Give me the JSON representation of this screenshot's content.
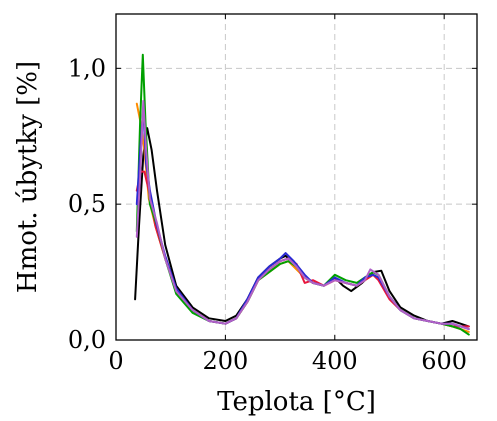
{
  "chart_data": {
    "type": "line",
    "xlabel": "Teplota [°C]",
    "ylabel": "Hmot. úbytky [%]",
    "xlim": [
      0,
      660
    ],
    "ylim": [
      0,
      1.2
    ],
    "x_ticks": [
      {
        "value": 0,
        "label": "0"
      },
      {
        "value": 200,
        "label": "200"
      },
      {
        "value": 400,
        "label": "400"
      },
      {
        "value": 600,
        "label": "600"
      }
    ],
    "y_ticks": [
      {
        "value": 0,
        "label": "0,0"
      },
      {
        "value": 0.5,
        "label": "0,5"
      },
      {
        "value": 1.0,
        "label": "1,0"
      }
    ],
    "grid": true,
    "series": [
      {
        "color": "#000000",
        "points": [
          [
            35,
            0.15
          ],
          [
            42,
            0.42
          ],
          [
            50,
            0.68
          ],
          [
            57,
            0.78
          ],
          [
            65,
            0.7
          ],
          [
            75,
            0.55
          ],
          [
            90,
            0.35
          ],
          [
            110,
            0.2
          ],
          [
            140,
            0.12
          ],
          [
            170,
            0.08
          ],
          [
            200,
            0.07
          ],
          [
            220,
            0.09
          ],
          [
            240,
            0.15
          ],
          [
            260,
            0.23
          ],
          [
            280,
            0.27
          ],
          [
            300,
            0.3
          ],
          [
            310,
            0.31
          ],
          [
            325,
            0.28
          ],
          [
            345,
            0.23
          ],
          [
            360,
            0.21
          ],
          [
            380,
            0.2
          ],
          [
            400,
            0.23
          ],
          [
            415,
            0.2
          ],
          [
            430,
            0.18
          ],
          [
            450,
            0.21
          ],
          [
            470,
            0.25
          ],
          [
            485,
            0.255
          ],
          [
            500,
            0.18
          ],
          [
            520,
            0.12
          ],
          [
            545,
            0.09
          ],
          [
            570,
            0.07
          ],
          [
            595,
            0.06
          ],
          [
            615,
            0.07
          ],
          [
            630,
            0.06
          ],
          [
            645,
            0.05
          ]
        ]
      },
      {
        "color": "#ff8c00",
        "points": [
          [
            38,
            0.87
          ],
          [
            45,
            0.8
          ],
          [
            52,
            0.7
          ],
          [
            60,
            0.52
          ],
          [
            72,
            0.42
          ],
          [
            90,
            0.3
          ],
          [
            110,
            0.18
          ],
          [
            140,
            0.11
          ],
          [
            170,
            0.07
          ],
          [
            200,
            0.06
          ],
          [
            220,
            0.08
          ],
          [
            240,
            0.14
          ],
          [
            260,
            0.22
          ],
          [
            280,
            0.25
          ],
          [
            300,
            0.28
          ],
          [
            315,
            0.29
          ],
          [
            330,
            0.26
          ],
          [
            345,
            0.23
          ],
          [
            360,
            0.21
          ],
          [
            380,
            0.2
          ],
          [
            400,
            0.22
          ],
          [
            420,
            0.21
          ],
          [
            440,
            0.2
          ],
          [
            455,
            0.22
          ],
          [
            470,
            0.24
          ],
          [
            480,
            0.23
          ],
          [
            500,
            0.16
          ],
          [
            520,
            0.11
          ],
          [
            545,
            0.08
          ],
          [
            570,
            0.07
          ],
          [
            595,
            0.06
          ],
          [
            615,
            0.05
          ],
          [
            630,
            0.04
          ],
          [
            645,
            0.03
          ]
        ]
      },
      {
        "color": "#e8163c",
        "points": [
          [
            38,
            0.55
          ],
          [
            45,
            0.62
          ],
          [
            52,
            0.62
          ],
          [
            60,
            0.55
          ],
          [
            72,
            0.42
          ],
          [
            90,
            0.3
          ],
          [
            110,
            0.18
          ],
          [
            140,
            0.11
          ],
          [
            170,
            0.07
          ],
          [
            200,
            0.06
          ],
          [
            220,
            0.08
          ],
          [
            240,
            0.14
          ],
          [
            260,
            0.22
          ],
          [
            280,
            0.26
          ],
          [
            300,
            0.29
          ],
          [
            315,
            0.3
          ],
          [
            330,
            0.28
          ],
          [
            345,
            0.21
          ],
          [
            360,
            0.22
          ],
          [
            380,
            0.2
          ],
          [
            400,
            0.22
          ],
          [
            420,
            0.21
          ],
          [
            440,
            0.2
          ],
          [
            455,
            0.22
          ],
          [
            470,
            0.24
          ],
          [
            480,
            0.22
          ],
          [
            500,
            0.15
          ],
          [
            520,
            0.11
          ],
          [
            545,
            0.08
          ],
          [
            570,
            0.07
          ],
          [
            595,
            0.06
          ],
          [
            615,
            0.05
          ],
          [
            630,
            0.05
          ],
          [
            645,
            0.05
          ]
        ]
      },
      {
        "color": "#00a000",
        "points": [
          [
            38,
            0.4
          ],
          [
            44,
            0.8
          ],
          [
            49,
            1.05
          ],
          [
            54,
            0.8
          ],
          [
            62,
            0.5
          ],
          [
            75,
            0.42
          ],
          [
            90,
            0.3
          ],
          [
            110,
            0.17
          ],
          [
            140,
            0.1
          ],
          [
            170,
            0.07
          ],
          [
            200,
            0.06
          ],
          [
            220,
            0.08
          ],
          [
            240,
            0.14
          ],
          [
            260,
            0.22
          ],
          [
            280,
            0.25
          ],
          [
            300,
            0.28
          ],
          [
            315,
            0.29
          ],
          [
            330,
            0.27
          ],
          [
            345,
            0.23
          ],
          [
            360,
            0.21
          ],
          [
            380,
            0.2
          ],
          [
            400,
            0.24
          ],
          [
            420,
            0.22
          ],
          [
            440,
            0.21
          ],
          [
            455,
            0.23
          ],
          [
            470,
            0.25
          ],
          [
            480,
            0.24
          ],
          [
            500,
            0.16
          ],
          [
            520,
            0.11
          ],
          [
            545,
            0.08
          ],
          [
            570,
            0.07
          ],
          [
            595,
            0.06
          ],
          [
            615,
            0.05
          ],
          [
            630,
            0.04
          ],
          [
            645,
            0.02
          ]
        ]
      },
      {
        "color": "#2a2ad4",
        "points": [
          [
            38,
            0.5
          ],
          [
            45,
            0.72
          ],
          [
            50,
            0.85
          ],
          [
            55,
            0.65
          ],
          [
            62,
            0.55
          ],
          [
            75,
            0.42
          ],
          [
            90,
            0.31
          ],
          [
            110,
            0.19
          ],
          [
            140,
            0.11
          ],
          [
            170,
            0.07
          ],
          [
            200,
            0.06
          ],
          [
            220,
            0.08
          ],
          [
            240,
            0.15
          ],
          [
            260,
            0.23
          ],
          [
            280,
            0.27
          ],
          [
            300,
            0.3
          ],
          [
            310,
            0.32
          ],
          [
            325,
            0.29
          ],
          [
            345,
            0.24
          ],
          [
            360,
            0.21
          ],
          [
            380,
            0.2
          ],
          [
            400,
            0.23
          ],
          [
            420,
            0.21
          ],
          [
            440,
            0.2
          ],
          [
            455,
            0.23
          ],
          [
            470,
            0.24
          ],
          [
            480,
            0.23
          ],
          [
            500,
            0.16
          ],
          [
            520,
            0.11
          ],
          [
            545,
            0.08
          ],
          [
            570,
            0.07
          ],
          [
            595,
            0.06
          ],
          [
            615,
            0.06
          ],
          [
            630,
            0.05
          ],
          [
            645,
            0.04
          ]
        ]
      },
      {
        "color": "#b060c8",
        "points": [
          [
            38,
            0.38
          ],
          [
            44,
            0.6
          ],
          [
            50,
            0.88
          ],
          [
            55,
            0.7
          ],
          [
            62,
            0.52
          ],
          [
            75,
            0.43
          ],
          [
            90,
            0.3
          ],
          [
            110,
            0.18
          ],
          [
            140,
            0.11
          ],
          [
            170,
            0.07
          ],
          [
            200,
            0.06
          ],
          [
            220,
            0.08
          ],
          [
            240,
            0.14
          ],
          [
            260,
            0.22
          ],
          [
            280,
            0.26
          ],
          [
            300,
            0.29
          ],
          [
            315,
            0.3
          ],
          [
            330,
            0.27
          ],
          [
            345,
            0.23
          ],
          [
            360,
            0.21
          ],
          [
            380,
            0.2
          ],
          [
            400,
            0.22
          ],
          [
            420,
            0.21
          ],
          [
            440,
            0.2
          ],
          [
            455,
            0.22
          ],
          [
            465,
            0.26
          ],
          [
            480,
            0.24
          ],
          [
            500,
            0.16
          ],
          [
            520,
            0.11
          ],
          [
            545,
            0.08
          ],
          [
            570,
            0.07
          ],
          [
            595,
            0.06
          ],
          [
            615,
            0.06
          ],
          [
            630,
            0.05
          ],
          [
            645,
            0.04
          ]
        ]
      }
    ]
  }
}
